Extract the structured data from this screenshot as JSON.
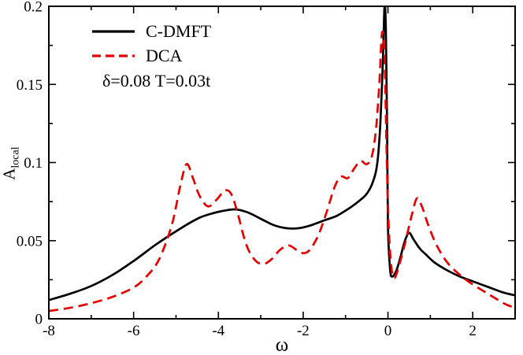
{
  "figure": {
    "annotation": "δ=0.08 T=0.03t"
  },
  "chart_data": {
    "type": "line",
    "title": "",
    "xlabel": "ω",
    "ylabel": "A_local",
    "ylabel_base": "A",
    "ylabel_sub": "local",
    "xlim": [
      -8,
      3
    ],
    "ylim": [
      0,
      0.2
    ],
    "grid": false,
    "legend_position": "top-left",
    "x_major_ticks": [
      -8,
      -6,
      -4,
      -2,
      0,
      2
    ],
    "x_tick_labels": [
      "-8",
      "-6",
      "-4",
      "-2",
      "0",
      "2"
    ],
    "x_minor_ticks": [
      -7,
      -5,
      -3,
      -1,
      1,
      3
    ],
    "y_major_ticks": [
      0,
      0.05,
      0.1,
      0.15,
      0.2
    ],
    "y_tick_labels": [
      "0",
      "0.05",
      "0.1",
      "0.15",
      "0.2"
    ],
    "y_minor_ticks": [
      0.025,
      0.075,
      0.125,
      0.175
    ],
    "series": [
      {
        "name": "C-DMFT",
        "color": "#000000",
        "dash": "solid",
        "points": [
          [
            -8,
            0.012
          ],
          [
            -7.5,
            0.016
          ],
          [
            -7,
            0.021
          ],
          [
            -6.5,
            0.028
          ],
          [
            -6,
            0.037
          ],
          [
            -5.5,
            0.047
          ],
          [
            -5,
            0.056
          ],
          [
            -4.5,
            0.064
          ],
          [
            -4.2,
            0.067
          ],
          [
            -3.9,
            0.069
          ],
          [
            -3.6,
            0.07
          ],
          [
            -3.3,
            0.068
          ],
          [
            -3,
            0.064
          ],
          [
            -2.7,
            0.06
          ],
          [
            -2.4,
            0.058
          ],
          [
            -2.1,
            0.058
          ],
          [
            -1.8,
            0.06
          ],
          [
            -1.5,
            0.063
          ],
          [
            -1.2,
            0.066
          ],
          [
            -0.9,
            0.071
          ],
          [
            -0.7,
            0.075
          ],
          [
            -0.5,
            0.08
          ],
          [
            -0.35,
            0.088
          ],
          [
            -0.25,
            0.1
          ],
          [
            -0.18,
            0.125
          ],
          [
            -0.12,
            0.165
          ],
          [
            -0.08,
            0.2
          ],
          [
            -0.05,
            0.185
          ],
          [
            -0.02,
            0.12
          ],
          [
            0,
            0.06
          ],
          [
            0.05,
            0.032
          ],
          [
            0.1,
            0.027
          ],
          [
            0.2,
            0.031
          ],
          [
            0.3,
            0.04
          ],
          [
            0.4,
            0.05
          ],
          [
            0.5,
            0.055
          ],
          [
            0.6,
            0.051
          ],
          [
            0.75,
            0.045
          ],
          [
            0.9,
            0.041
          ],
          [
            1.1,
            0.036
          ],
          [
            1.4,
            0.031
          ],
          [
            1.7,
            0.027
          ],
          [
            2,
            0.024
          ],
          [
            2.4,
            0.02
          ],
          [
            2.7,
            0.017
          ],
          [
            3,
            0.015
          ]
        ]
      },
      {
        "name": "DCA",
        "color": "#e60000",
        "dash": "dashed",
        "points": [
          [
            -8,
            0.005
          ],
          [
            -7.5,
            0.007
          ],
          [
            -7,
            0.01
          ],
          [
            -6.5,
            0.014
          ],
          [
            -6,
            0.02
          ],
          [
            -5.7,
            0.027
          ],
          [
            -5.4,
            0.038
          ],
          [
            -5.1,
            0.06
          ],
          [
            -4.9,
            0.085
          ],
          [
            -4.75,
            0.099
          ],
          [
            -4.6,
            0.09
          ],
          [
            -4.45,
            0.079
          ],
          [
            -4.25,
            0.072
          ],
          [
            -4.05,
            0.076
          ],
          [
            -3.85,
            0.082
          ],
          [
            -3.7,
            0.08
          ],
          [
            -3.55,
            0.068
          ],
          [
            -3.35,
            0.048
          ],
          [
            -3.15,
            0.038
          ],
          [
            -2.95,
            0.035
          ],
          [
            -2.75,
            0.038
          ],
          [
            -2.55,
            0.044
          ],
          [
            -2.35,
            0.047
          ],
          [
            -2.15,
            0.044
          ],
          [
            -2,
            0.042
          ],
          [
            -1.85,
            0.044
          ],
          [
            -1.65,
            0.053
          ],
          [
            -1.45,
            0.068
          ],
          [
            -1.25,
            0.085
          ],
          [
            -1.1,
            0.091
          ],
          [
            -0.95,
            0.09
          ],
          [
            -0.8,
            0.096
          ],
          [
            -0.65,
            0.101
          ],
          [
            -0.5,
            0.099
          ],
          [
            -0.38,
            0.104
          ],
          [
            -0.28,
            0.122
          ],
          [
            -0.2,
            0.152
          ],
          [
            -0.14,
            0.183
          ],
          [
            -0.08,
            0.168
          ],
          [
            -0.03,
            0.105
          ],
          [
            0.02,
            0.058
          ],
          [
            0.08,
            0.033
          ],
          [
            0.15,
            0.026
          ],
          [
            0.25,
            0.033
          ],
          [
            0.4,
            0.048
          ],
          [
            0.55,
            0.065
          ],
          [
            0.68,
            0.077
          ],
          [
            0.8,
            0.072
          ],
          [
            0.95,
            0.06
          ],
          [
            1.15,
            0.047
          ],
          [
            1.4,
            0.036
          ],
          [
            1.7,
            0.028
          ],
          [
            2,
            0.022
          ],
          [
            2.3,
            0.017
          ],
          [
            2.6,
            0.012
          ],
          [
            2.8,
            0.009
          ],
          [
            3,
            0.007
          ]
        ]
      }
    ]
  }
}
